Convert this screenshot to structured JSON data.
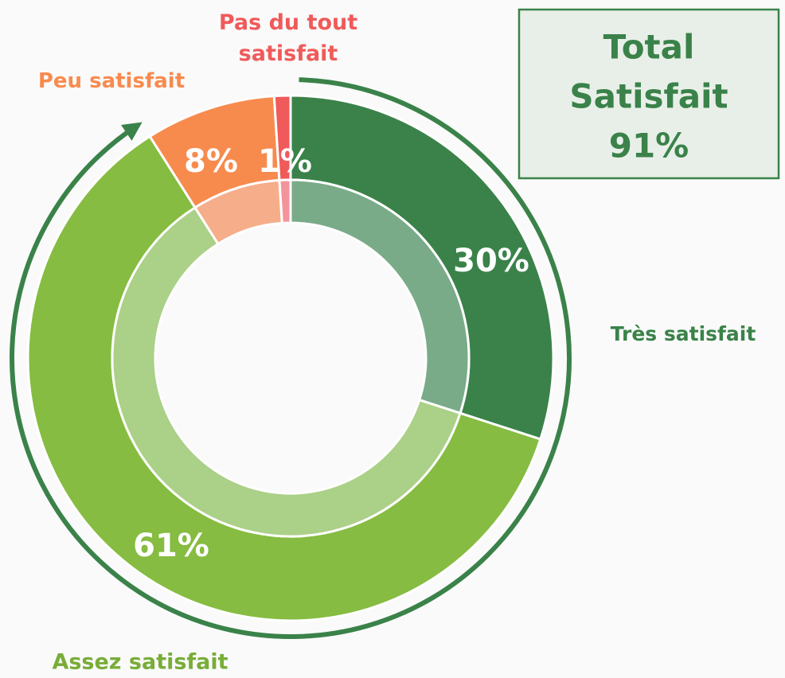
{
  "chart_data": {
    "type": "donut",
    "categories": [
      "Très satisfait",
      "Assez satisfait",
      "Peu satisfait",
      "Pas du tout satisfait"
    ],
    "values": [
      30,
      61,
      8,
      1
    ],
    "value_labels": [
      "30%",
      "61%",
      "8%",
      "1%"
    ],
    "colors": [
      "#3a8249",
      "#86bc41",
      "#f78b4e",
      "#f05a5a"
    ],
    "inner_colors": [
      "#7aab88",
      "#abd087",
      "#f6ad8a",
      "#f3949b"
    ],
    "label_colors": [
      "#3a8249",
      "#78ad38",
      "#f78b4e",
      "#f05a5a"
    ],
    "total": {
      "lines": [
        "Total",
        "Satisfait"
      ],
      "value": 91,
      "value_label": "91%",
      "color": "#3a8249"
    }
  }
}
